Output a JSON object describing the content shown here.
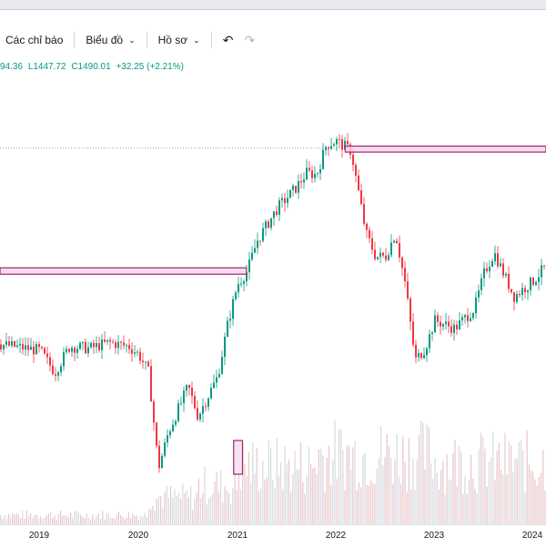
{
  "toolbar": {
    "indicators_label": "Các chỉ báo",
    "chart_label": "Biểu đồ",
    "profile_label": "Hồ sơ",
    "undo_icon": "undo-icon",
    "redo_icon": "redo-icon"
  },
  "legend": {
    "high": "94.36",
    "low": "L1447.72",
    "close": "C1490.01",
    "change": "+32.25 (+2.21%)"
  },
  "colors": {
    "up": "#089981",
    "down": "#f23645",
    "zone_fill": "#f3d4f1",
    "zone_border": "#9c2a5e",
    "volume": "#c9cbd2"
  },
  "chart_data": {
    "type": "candlestick",
    "x_labels": [
      "2019",
      "2020",
      "2021",
      "2022",
      "2023",
      "2024"
    ],
    "price_path": [
      [
        2018.6,
        1000
      ],
      [
        2019.0,
        985
      ],
      [
        2019.15,
        930
      ],
      [
        2019.3,
        995
      ],
      [
        2019.5,
        990
      ],
      [
        2019.7,
        1005
      ],
      [
        2019.9,
        995
      ],
      [
        2020.0,
        975
      ],
      [
        2020.1,
        930
      ],
      [
        2020.2,
        690
      ],
      [
        2020.3,
        780
      ],
      [
        2020.5,
        895
      ],
      [
        2020.6,
        820
      ],
      [
        2020.8,
        920
      ],
      [
        2020.9,
        1050
      ],
      [
        2021.0,
        1150
      ],
      [
        2021.1,
        1185
      ],
      [
        2021.2,
        1260
      ],
      [
        2021.4,
        1340
      ],
      [
        2021.6,
        1395
      ],
      [
        2021.7,
        1430
      ],
      [
        2021.8,
        1425
      ],
      [
        2021.9,
        1500
      ],
      [
        2022.0,
        1510
      ],
      [
        2022.15,
        1485
      ],
      [
        2022.3,
        1280
      ],
      [
        2022.4,
        1220
      ],
      [
        2022.5,
        1220
      ],
      [
        2022.6,
        1280
      ],
      [
        2022.7,
        1150
      ],
      [
        2022.8,
        960
      ],
      [
        2022.9,
        990
      ],
      [
        2023.0,
        1060
      ],
      [
        2023.2,
        1040
      ],
      [
        2023.4,
        1090
      ],
      [
        2023.5,
        1180
      ],
      [
        2023.6,
        1230
      ],
      [
        2023.8,
        1120
      ],
      [
        2024.0,
        1160
      ],
      [
        2024.1,
        1190
      ],
      [
        2024.2,
        1220
      ]
    ],
    "supply_zones": [
      {
        "x_start": 2018.4,
        "x_end": 2021.1,
        "y_low": 1176,
        "y_high": 1192
      },
      {
        "x_start": 2022.1,
        "x_end": 2024.3,
        "y_low": 1482,
        "y_high": 1497
      }
    ],
    "volume_highlight": {
      "x_start": 2020.97,
      "x_end": 2021.06
    },
    "dotted_level": 1492
  }
}
